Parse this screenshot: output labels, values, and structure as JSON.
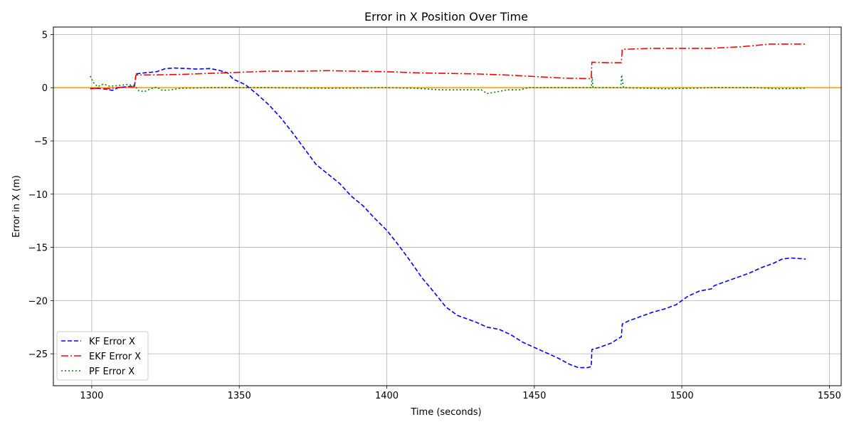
{
  "chart_data": {
    "type": "line",
    "title": "Error in X Position Over Time",
    "xlabel": "Time (seconds)",
    "ylabel": "Error in X (m)",
    "xlim": [
      1287,
      1554
    ],
    "ylim": [
      -28,
      5.7
    ],
    "xticks": [
      1300,
      1350,
      1400,
      1450,
      1500,
      1550
    ],
    "yticks": [
      5,
      0,
      -5,
      -10,
      -15,
      -20,
      -25
    ],
    "xtick_labels": [
      "1300",
      "1350",
      "1400",
      "1450",
      "1500",
      "1550"
    ],
    "ytick_labels": [
      "5",
      "0",
      "−5",
      "−10",
      "−15",
      "−20",
      "−25"
    ],
    "grid": true,
    "legend_position": "lower-left",
    "reference_line": {
      "y": 0,
      "color": "#ffa500"
    },
    "series": [
      {
        "name": "KF Error X",
        "color": "#0000ff",
        "dash": "dashed",
        "points": [
          [
            1299.5,
            -0.1
          ],
          [
            1302,
            -0.05
          ],
          [
            1305,
            -0.15
          ],
          [
            1307,
            -0.25
          ],
          [
            1309,
            0.0
          ],
          [
            1312,
            0.1
          ],
          [
            1314.5,
            0.15
          ],
          [
            1315,
            1.3
          ],
          [
            1318,
            1.4
          ],
          [
            1322,
            1.5
          ],
          [
            1325,
            1.8
          ],
          [
            1328,
            1.85
          ],
          [
            1332,
            1.8
          ],
          [
            1336,
            1.75
          ],
          [
            1340,
            1.8
          ],
          [
            1343,
            1.65
          ],
          [
            1346,
            1.4
          ],
          [
            1348,
            0.8
          ],
          [
            1352,
            0.3
          ],
          [
            1356,
            -0.6
          ],
          [
            1360,
            -1.6
          ],
          [
            1364,
            -2.8
          ],
          [
            1368,
            -4.2
          ],
          [
            1372,
            -5.7
          ],
          [
            1376,
            -7.2
          ],
          [
            1380,
            -8.1
          ],
          [
            1384,
            -9.0
          ],
          [
            1388,
            -10.2
          ],
          [
            1392,
            -11.1
          ],
          [
            1396,
            -12.3
          ],
          [
            1400,
            -13.4
          ],
          [
            1404,
            -14.8
          ],
          [
            1408,
            -16.3
          ],
          [
            1412,
            -17.9
          ],
          [
            1416,
            -19.2
          ],
          [
            1420,
            -20.6
          ],
          [
            1424,
            -21.4
          ],
          [
            1427,
            -21.7
          ],
          [
            1430,
            -22.0
          ],
          [
            1434,
            -22.5
          ],
          [
            1438,
            -22.7
          ],
          [
            1442,
            -23.2
          ],
          [
            1446,
            -23.9
          ],
          [
            1450,
            -24.4
          ],
          [
            1454,
            -24.9
          ],
          [
            1458,
            -25.4
          ],
          [
            1462,
            -26.0
          ],
          [
            1465,
            -26.3
          ],
          [
            1468,
            -26.3
          ],
          [
            1469.3,
            -26.2
          ],
          [
            1469.5,
            -24.6
          ],
          [
            1472,
            -24.4
          ],
          [
            1476,
            -24.0
          ],
          [
            1479.5,
            -23.4
          ],
          [
            1479.8,
            -22.2
          ],
          [
            1482,
            -21.9
          ],
          [
            1486,
            -21.5
          ],
          [
            1490,
            -21.1
          ],
          [
            1494,
            -20.8
          ],
          [
            1498,
            -20.4
          ],
          [
            1500,
            -20.0
          ],
          [
            1502,
            -19.6
          ],
          [
            1506,
            -19.1
          ],
          [
            1510,
            -18.9
          ],
          [
            1511,
            -18.6
          ],
          [
            1515,
            -18.2
          ],
          [
            1519,
            -17.8
          ],
          [
            1523,
            -17.4
          ],
          [
            1527,
            -16.9
          ],
          [
            1531,
            -16.5
          ],
          [
            1534,
            -16.1
          ],
          [
            1537,
            -16.0
          ],
          [
            1542,
            -16.1
          ]
        ]
      },
      {
        "name": "EKF Error X",
        "color": "#ff0000",
        "dash": "dashdot",
        "points": [
          [
            1299.5,
            -0.05
          ],
          [
            1305,
            -0.1
          ],
          [
            1310,
            0.05
          ],
          [
            1314.5,
            0.1
          ],
          [
            1315,
            1.2
          ],
          [
            1320,
            1.2
          ],
          [
            1330,
            1.25
          ],
          [
            1340,
            1.35
          ],
          [
            1350,
            1.45
          ],
          [
            1360,
            1.55
          ],
          [
            1370,
            1.55
          ],
          [
            1380,
            1.6
          ],
          [
            1390,
            1.55
          ],
          [
            1400,
            1.5
          ],
          [
            1410,
            1.4
          ],
          [
            1420,
            1.35
          ],
          [
            1430,
            1.3
          ],
          [
            1440,
            1.2
          ],
          [
            1450,
            1.05
          ],
          [
            1460,
            0.9
          ],
          [
            1469.3,
            0.85
          ],
          [
            1469.5,
            2.4
          ],
          [
            1475,
            2.35
          ],
          [
            1479.5,
            2.35
          ],
          [
            1479.8,
            3.6
          ],
          [
            1490,
            3.7
          ],
          [
            1500,
            3.7
          ],
          [
            1510,
            3.7
          ],
          [
            1520,
            3.85
          ],
          [
            1530,
            4.1
          ],
          [
            1535,
            4.1
          ],
          [
            1542,
            4.1
          ]
        ]
      },
      {
        "name": "PF Error X",
        "color": "#008000",
        "dash": "dotted",
        "points": [
          [
            1299.5,
            1.1
          ],
          [
            1300.5,
            0.5
          ],
          [
            1302,
            0.1
          ],
          [
            1304,
            0.35
          ],
          [
            1306,
            0.15
          ],
          [
            1309,
            0.2
          ],
          [
            1312,
            0.3
          ],
          [
            1314.5,
            0.2
          ],
          [
            1316,
            -0.3
          ],
          [
            1318,
            -0.35
          ],
          [
            1320,
            -0.1
          ],
          [
            1322,
            0.05
          ],
          [
            1324,
            -0.25
          ],
          [
            1327,
            -0.2
          ],
          [
            1330,
            -0.05
          ],
          [
            1340,
            0.0
          ],
          [
            1360,
            0.0
          ],
          [
            1380,
            -0.05
          ],
          [
            1400,
            0.0
          ],
          [
            1410,
            -0.05
          ],
          [
            1418,
            -0.2
          ],
          [
            1425,
            -0.2
          ],
          [
            1432,
            -0.2
          ],
          [
            1434,
            -0.55
          ],
          [
            1437,
            -0.4
          ],
          [
            1441,
            -0.2
          ],
          [
            1445,
            -0.2
          ],
          [
            1448,
            0.0
          ],
          [
            1465,
            0.0
          ],
          [
            1469.3,
            0.0
          ],
          [
            1469.6,
            1.0
          ],
          [
            1469.9,
            0.0
          ],
          [
            1479.3,
            0.0
          ],
          [
            1479.6,
            1.2
          ],
          [
            1480.2,
            0.0
          ],
          [
            1495,
            -0.1
          ],
          [
            1510,
            0.0
          ],
          [
            1525,
            0.0
          ],
          [
            1533,
            -0.1
          ],
          [
            1542,
            -0.05
          ]
        ]
      }
    ]
  }
}
